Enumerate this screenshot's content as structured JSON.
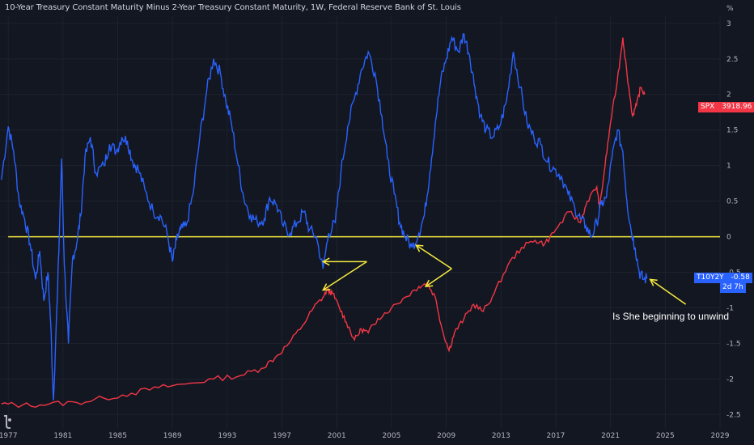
{
  "chart_data": {
    "type": "line",
    "title": "10-Year Treasury Constant Maturity Minus 2-Year Treasury Constant Maturity, 1W, Federal Reserve Bank of St. Louis",
    "unit": "%",
    "x_ticks": [
      "1977",
      "1981",
      "1985",
      "1989",
      "1993",
      "1997",
      "2001",
      "2005",
      "2009",
      "2013",
      "2017",
      "2021",
      "2025",
      "2029"
    ],
    "y_ticks": [
      "3",
      "2.5",
      "2",
      "1.5",
      "1",
      "0.5",
      "0",
      "-0.5",
      "-1",
      "-1.5",
      "-2",
      "-2.5"
    ],
    "xlim": [
      1976.4,
      2029
    ],
    "ylim": [
      -2.7,
      3.1
    ],
    "grid": true,
    "series": [
      {
        "name": "T10Y2Y",
        "color": "#2962ff",
        "last_value": "-0.58",
        "sub_label": "2d 7h",
        "x": [
          1976.5,
          1977.0,
          1977.4,
          1977.8,
          1978.2,
          1978.6,
          1979.0,
          1979.3,
          1979.6,
          1979.9,
          1980.1,
          1980.3,
          1980.6,
          1980.9,
          1981.1,
          1981.4,
          1981.7,
          1982.0,
          1982.3,
          1982.6,
          1983.0,
          1983.4,
          1984.0,
          1984.4,
          1984.9,
          1985.3,
          1985.7,
          1986.1,
          1986.5,
          1987.0,
          1987.6,
          1988.1,
          1988.6,
          1989.0,
          1989.3,
          1989.6,
          1990.0,
          1990.5,
          1991.0,
          1991.5,
          1992.0,
          1992.5,
          1992.9,
          1993.3,
          1993.8,
          1994.2,
          1994.7,
          1995.2,
          1995.7,
          1996.1,
          1996.6,
          1997.1,
          1997.6,
          1998.1,
          1998.6,
          1999.0,
          1999.5,
          2000.0,
          2000.4,
          2000.9,
          2001.3,
          2001.8,
          2002.3,
          2002.8,
          2003.3,
          2003.8,
          2004.3,
          2004.7,
          2005.2,
          2005.6,
          2006.0,
          2006.5,
          2007.0,
          2007.4,
          2007.8,
          2008.2,
          2008.6,
          2009.0,
          2009.4,
          2009.9,
          2010.3,
          2010.7,
          2011.1,
          2011.5,
          2011.9,
          2012.4,
          2012.9,
          2013.4,
          2013.9,
          2014.4,
          2014.9,
          2015.4,
          2015.9,
          2016.4,
          2016.9,
          2017.4,
          2017.9,
          2018.4,
          2018.8,
          2019.2,
          2019.6,
          2020.0,
          2020.3,
          2020.7,
          2021.1,
          2021.5,
          2021.9,
          2022.2,
          2022.5,
          2022.8,
          2023.1,
          2023.4,
          2023.7
        ],
        "y": [
          0.8,
          1.55,
          1.2,
          0.5,
          0.25,
          -0.1,
          -0.6,
          -0.2,
          -0.9,
          -0.5,
          -1.2,
          -2.3,
          -0.8,
          1.1,
          -0.4,
          -1.5,
          -0.3,
          -0.1,
          0.3,
          1.1,
          1.4,
          0.9,
          1.0,
          1.3,
          1.2,
          1.4,
          1.35,
          1.05,
          0.95,
          0.65,
          0.35,
          0.3,
          0.05,
          -0.35,
          -0.05,
          0.1,
          0.15,
          0.6,
          1.4,
          2.05,
          2.5,
          2.3,
          1.9,
          1.6,
          1.0,
          0.55,
          0.3,
          0.2,
          0.25,
          0.55,
          0.45,
          0.15,
          0.05,
          0.2,
          0.35,
          0.1,
          0.0,
          -0.45,
          0.05,
          0.2,
          0.9,
          1.55,
          1.95,
          2.35,
          2.6,
          2.3,
          1.7,
          1.1,
          0.6,
          0.2,
          0.0,
          -0.15,
          0.05,
          0.3,
          0.9,
          1.6,
          2.2,
          2.5,
          2.8,
          2.6,
          2.85,
          2.55,
          2.1,
          1.7,
          1.5,
          1.4,
          1.55,
          1.9,
          2.6,
          2.1,
          1.6,
          1.4,
          1.3,
          1.05,
          0.95,
          0.85,
          0.6,
          0.4,
          0.25,
          0.15,
          0.0,
          0.2,
          0.45,
          0.55,
          1.1,
          1.5,
          1.2,
          0.5,
          0.1,
          -0.15,
          -0.5,
          -0.6,
          -0.58
        ]
      },
      {
        "name": "SPX",
        "color": "#f23645",
        "last_value": "3918.96",
        "x": [
          1976.5,
          1978.0,
          1980.0,
          1982.0,
          1984.0,
          1986.0,
          1988.0,
          1990.0,
          1992.0,
          1994.0,
          1995.5,
          1996.5,
          1997.5,
          1998.5,
          1999.3,
          2000.0,
          2000.3,
          2000.7,
          2001.2,
          2001.7,
          2002.3,
          2002.8,
          2003.3,
          2004.0,
          2005.0,
          2006.0,
          2007.0,
          2007.6,
          2008.2,
          2008.7,
          2009.2,
          2009.6,
          2010.3,
          2011.0,
          2011.7,
          2012.5,
          2013.5,
          2014.5,
          2015.5,
          2016.2,
          2017.0,
          2018.0,
          2018.8,
          2019.3,
          2020.0,
          2020.2,
          2020.6,
          2021.0,
          2021.5,
          2021.9,
          2022.2,
          2022.6,
          2022.9,
          2023.2,
          2023.5
        ],
        "y": [
          -2.35,
          -2.37,
          -2.35,
          -2.33,
          -2.27,
          -2.2,
          -2.12,
          -2.07,
          -2.0,
          -1.95,
          -1.85,
          -1.7,
          -1.5,
          -1.25,
          -1.0,
          -0.85,
          -0.75,
          -0.8,
          -1.0,
          -1.2,
          -1.45,
          -1.3,
          -1.35,
          -1.15,
          -1.0,
          -0.85,
          -0.7,
          -0.65,
          -0.85,
          -1.3,
          -1.6,
          -1.35,
          -1.15,
          -0.95,
          -1.05,
          -0.8,
          -0.4,
          -0.15,
          -0.05,
          -0.1,
          0.1,
          0.35,
          0.2,
          0.5,
          0.7,
          0.4,
          1.0,
          1.6,
          2.2,
          2.8,
          2.3,
          1.7,
          1.85,
          2.1,
          2.0
        ]
      }
    ],
    "reference_line": {
      "y": 0,
      "color": "#f5eb3c"
    },
    "annotations": [
      {
        "text": "Is She beginning to unwind",
        "color": "#ffffff"
      }
    ],
    "arrows": [
      {
        "color": "#f5eb3c",
        "from": [
          2003.2,
          -0.35
        ],
        "to": [
          2000.0,
          -0.35
        ]
      },
      {
        "color": "#f5eb3c",
        "from": [
          2003.2,
          -0.35
        ],
        "to": [
          2000.0,
          -0.75
        ]
      },
      {
        "color": "#f5eb3c",
        "from": [
          2009.4,
          -0.45
        ],
        "to": [
          2006.8,
          -0.12
        ]
      },
      {
        "color": "#f5eb3c",
        "from": [
          2009.4,
          -0.45
        ],
        "to": [
          2007.5,
          -0.7
        ]
      },
      {
        "color": "#f5eb3c",
        "from": [
          2026.5,
          -0.95
        ],
        "to": [
          2023.9,
          -0.6
        ]
      }
    ]
  }
}
